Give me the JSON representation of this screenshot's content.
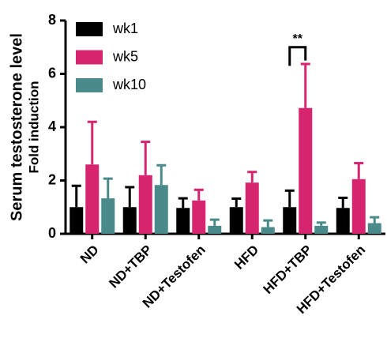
{
  "chart_data": {
    "type": "bar",
    "ylabel": "Serum testosterone level",
    "ylabel2": "Fold induction",
    "categories": [
      "ND",
      "ND+TBP",
      "ND+Testofen",
      "HFD",
      "HFD+TBP",
      "HFD+Testofen"
    ],
    "series": [
      {
        "name": "wk1",
        "color": "#000000",
        "values": [
          1.0,
          1.0,
          0.97,
          1.0,
          1.0,
          0.97
        ],
        "errors": [
          0.8,
          0.75,
          0.36,
          0.32,
          0.62,
          0.38
        ]
      },
      {
        "name": "wk5",
        "color": "#d6246e",
        "values": [
          2.6,
          2.2,
          1.25,
          1.92,
          4.72,
          2.05
        ],
        "errors": [
          1.6,
          1.25,
          0.4,
          0.4,
          1.65,
          0.6
        ]
      },
      {
        "name": "wk10",
        "color": "#4a8a8a",
        "values": [
          1.33,
          1.83,
          0.3,
          0.25,
          0.3,
          0.4
        ],
        "errors": [
          0.74,
          0.74,
          0.23,
          0.25,
          0.12,
          0.22
        ]
      }
    ],
    "annotation": "**",
    "ylim": [
      0,
      8
    ],
    "yticks": [
      0,
      2,
      4,
      6,
      8
    ],
    "legend": "upper-left"
  }
}
